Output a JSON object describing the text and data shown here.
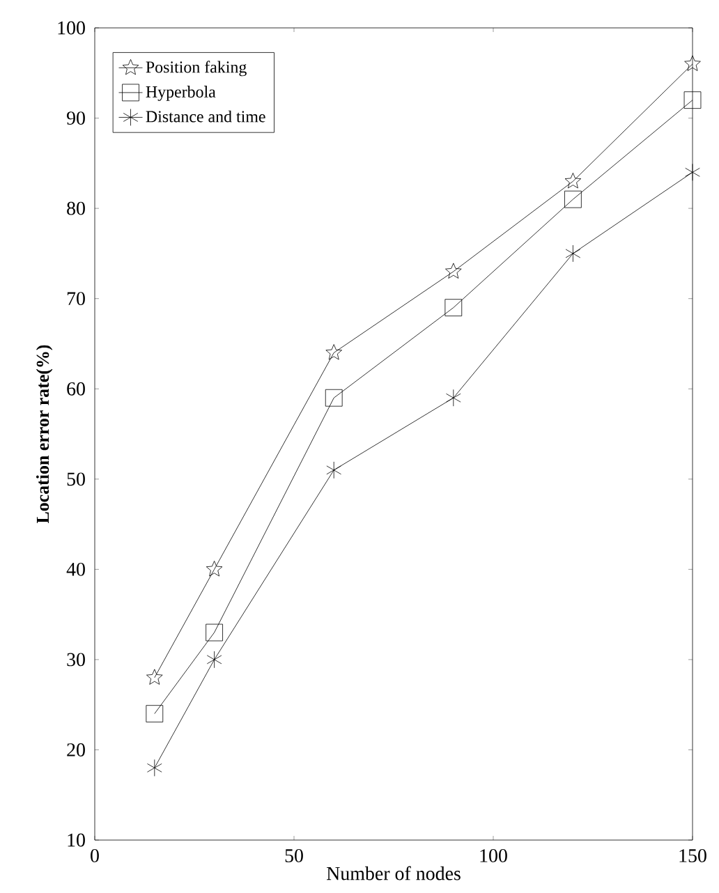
{
  "chart_data": {
    "type": "line",
    "xlabel": "Number of nodes",
    "ylabel": "Location error rate(%)",
    "x": [
      15,
      30,
      60,
      90,
      120,
      150
    ],
    "series": [
      {
        "name": "Position faking",
        "color": "#000000",
        "marker": "star",
        "values": [
          28,
          40,
          64,
          73,
          83,
          96
        ]
      },
      {
        "name": "Hyperbola",
        "color": "#000000",
        "marker": "square",
        "values": [
          24,
          33,
          59,
          69,
          81,
          92
        ]
      },
      {
        "name": "Distance and time",
        "color": "#000000",
        "marker": "cross",
        "values": [
          18,
          30,
          51,
          59,
          75,
          84
        ]
      }
    ],
    "xlim": [
      0,
      150
    ],
    "xticks": [
      0,
      50,
      100,
      150
    ],
    "ylim": [
      10,
      100
    ],
    "yticks": [
      10,
      20,
      30,
      40,
      50,
      60,
      70,
      80,
      90,
      100
    ],
    "legend": "top left",
    "line_style": "solid",
    "grid": false
  }
}
